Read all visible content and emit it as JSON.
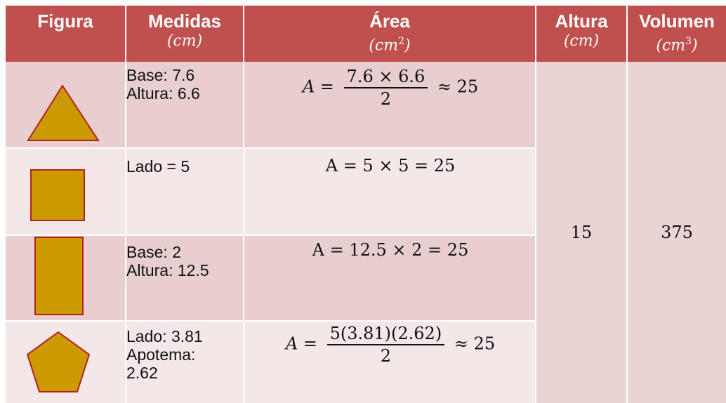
{
  "header": {
    "figura": "Figura",
    "medidas": "Medidas",
    "medidas_unit": "(cm)",
    "area": "Área",
    "area_unit_base": "(cm",
    "area_unit_exp": "2",
    "area_unit_close": ")",
    "altura": "Altura",
    "altura_unit": "(cm)",
    "volumen": "Volumen",
    "volumen_unit_base": "(cm",
    "volumen_unit_exp": "3",
    "volumen_unit_close": ")"
  },
  "rows": [
    {
      "shape": "triangle-icon",
      "medidas": [
        "Base: 7.6",
        "Altura: 6.6"
      ],
      "area": {
        "lhs": "A =",
        "num": "7.6 × 6.6",
        "den": "2",
        "rhs": "≈ 25"
      }
    },
    {
      "shape": "square-icon",
      "medidas": [
        "Lado = 5"
      ],
      "area": {
        "expr": "A = 5 × 5 = 25"
      }
    },
    {
      "shape": "rectangle-icon",
      "medidas": [
        "Base: 2",
        "Altura: 12.5"
      ],
      "area": {
        "expr": "A = 12.5 × 2 = 25"
      }
    },
    {
      "shape": "pentagon-icon",
      "medidas": [
        "Lado: 3.81",
        "Apotema:",
        "2.62"
      ],
      "area": {
        "lhs": "A =",
        "num": "5(3.81)(2.62)",
        "den": "2",
        "rhs": "≈ 25"
      }
    }
  ],
  "altura_value": "15",
  "volumen_value": "375",
  "colors": {
    "header": "#c0504d",
    "shape_fill": "#cc9900",
    "shape_stroke": "#b22222",
    "row_dark": "#e8cece",
    "row_light": "#f4e7e7"
  }
}
